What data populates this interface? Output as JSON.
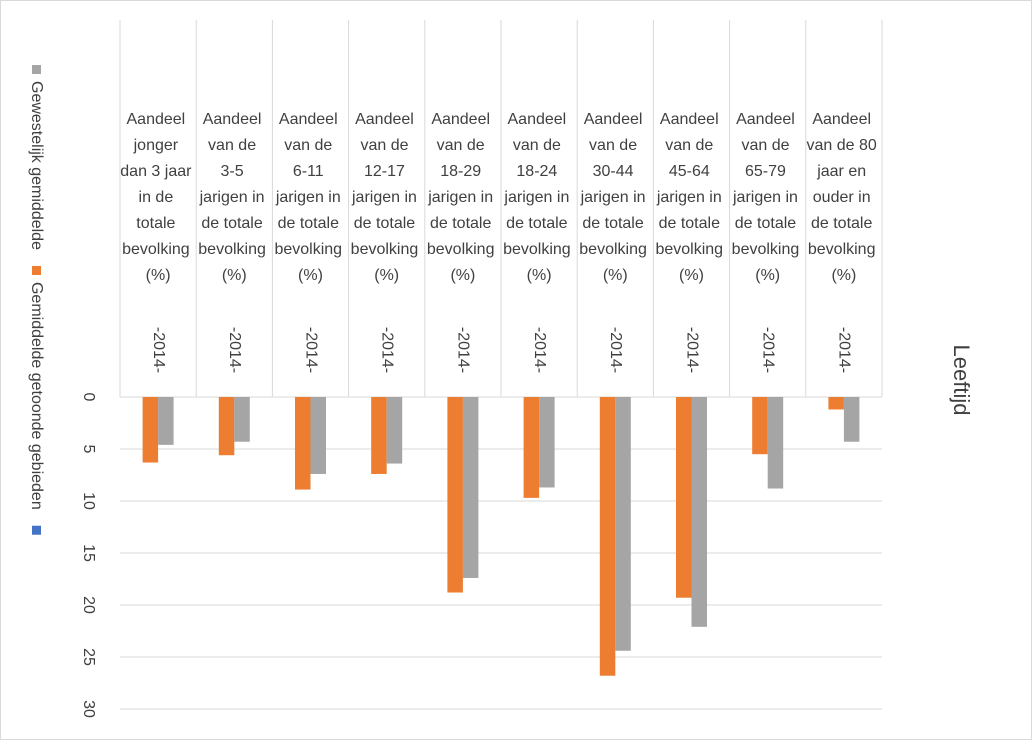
{
  "chart_data": {
    "type": "bar",
    "axis_title": "Leeftijd",
    "categories": [
      "Aandeel jonger dan 3 jaar in de totale bevolking (%)",
      "Aandeel van de 3-5 jarigen in de totale bevolking (%)",
      "Aandeel van de 6-11 jarigen in de totale bevolking (%)",
      "Aandeel van de 12-17 jarigen in de totale bevolking (%)",
      "Aandeel van de 18-29 jarigen in de totale bevolking (%)",
      "Aandeel van de 18-24 jarigen in de totale bevolking (%)",
      "Aandeel van de 30-44 jarigen in de totale bevolking (%)",
      "Aandeel van de 45-64 jarigen in de totale bevolking (%)",
      "Aandeel van de 65-79 jarigen in de totale bevolking (%)",
      "Aandeel van de 80 jaar en ouder in de totale bevolking (%)"
    ],
    "periods": [
      "-2014-",
      "-2014-",
      "-2014-",
      "-2014-",
      "-2014-",
      "-2014-",
      "-2014-",
      "-2014-",
      "-2014-",
      "-2014-"
    ],
    "series": [
      {
        "name": "Gemiddelde getoonde gebieden",
        "color": "#ed7d31",
        "values": [
          6.3,
          5.6,
          8.9,
          7.4,
          18.8,
          9.7,
          26.8,
          19.3,
          5.5,
          1.2
        ]
      },
      {
        "name": "Gewestelijk gemiddelde",
        "color": "#a5a5a5",
        "values": [
          4.6,
          4.3,
          7.4,
          6.4,
          17.4,
          8.7,
          24.4,
          22.1,
          8.8,
          4.3
        ]
      },
      {
        "name": null,
        "color": "#4472c4",
        "values": [
          null,
          null,
          null,
          null,
          null,
          null,
          null,
          null,
          null,
          null
        ]
      }
    ],
    "legend_order": [
      1,
      0,
      2
    ],
    "ylim": [
      0,
      30
    ],
    "yticks": [
      0,
      5,
      10,
      15,
      20,
      25,
      30
    ],
    "y_reversed": true,
    "grid": true
  }
}
